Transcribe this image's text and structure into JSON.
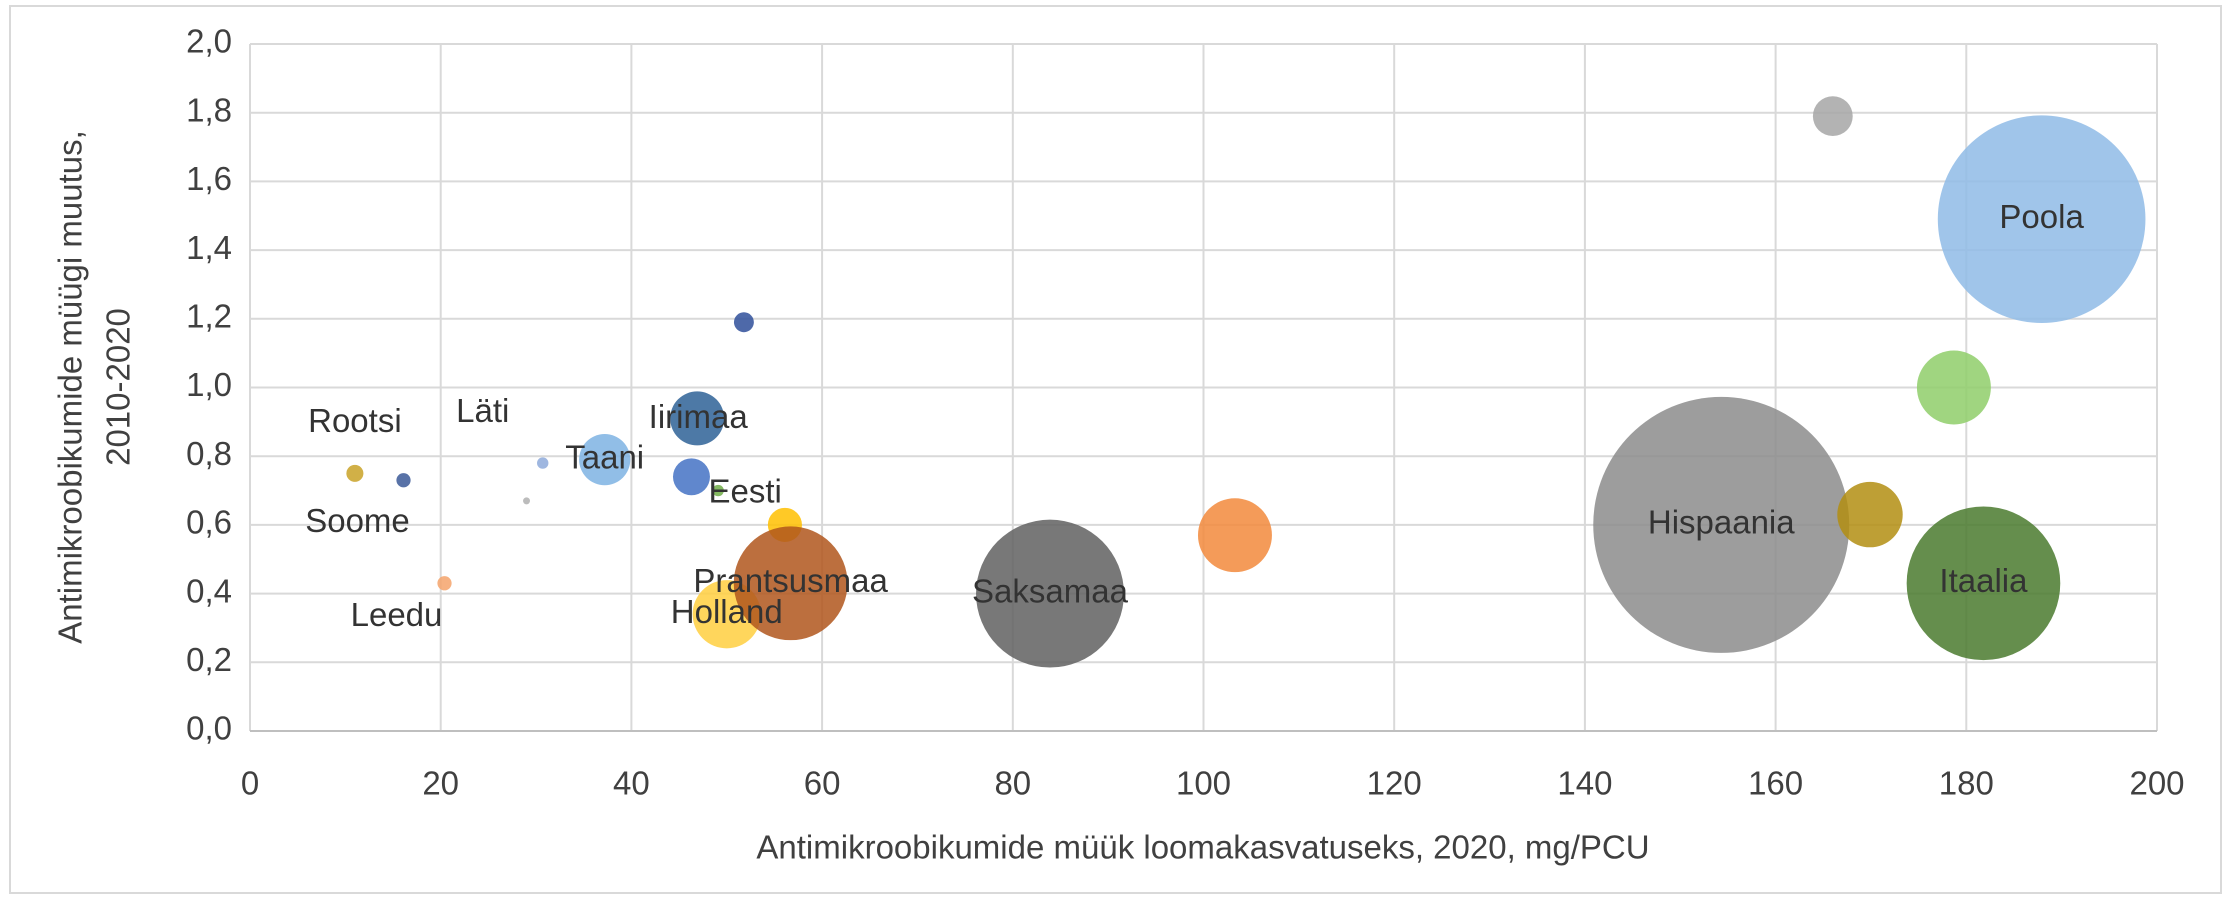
{
  "chart_data": {
    "type": "bubble",
    "x_label": "Antimikroobikumide müük loomakasvatuseks, 2020, mg/PCU",
    "y_label": [
      "Antimikroobikumide müügi muutus,",
      "2010-2020"
    ],
    "xlim": [
      0,
      200
    ],
    "xticks": [
      0,
      20,
      40,
      60,
      80,
      100,
      120,
      140,
      160,
      180,
      200
    ],
    "ylim": [
      0,
      2.0
    ],
    "yticks": [
      {
        "value": 0,
        "label": "0,0"
      },
      {
        "value": 0.2,
        "label": "0,2"
      },
      {
        "value": 0.4,
        "label": "0,4"
      },
      {
        "value": 0.6,
        "label": "0,6"
      },
      {
        "value": 0.8,
        "label": "0,8"
      },
      {
        "value": 1.0,
        "label": "1,0"
      },
      {
        "value": 1.2,
        "label": "1,2"
      },
      {
        "value": 1.4,
        "label": "1,4"
      },
      {
        "value": 1.6,
        "label": "1,6"
      },
      {
        "value": 1.8,
        "label": "1,8"
      },
      {
        "value": 2.0,
        "label": "2,0"
      }
    ],
    "grid": true,
    "labels": [
      "Rootsi",
      "Soome",
      "Leedu",
      "Läti",
      null,
      "Taani",
      "Iirimaa",
      null,
      "Eesti",
      null,
      null,
      "Holland",
      "Prantsusmaa",
      "Saksamaa",
      null,
      "Hispaania",
      null,
      "Poola",
      null,
      null,
      "Itaalia"
    ],
    "x": [
      11.0,
      16.1,
      20.4,
      30.7,
      29.0,
      37.2,
      46.9,
      46.3,
      49.1,
      51.8,
      56.1,
      50.0,
      56.7,
      83.9,
      103.3,
      154.3,
      166.0,
      187.9,
      178.7,
      169.9,
      181.8
    ],
    "values": [
      0.75,
      0.73,
      0.43,
      0.78,
      0.67,
      0.79,
      0.91,
      0.74,
      0.7,
      1.19,
      0.6,
      0.34,
      0.43,
      0.4,
      0.57,
      0.6,
      1.79,
      1.49,
      1.0,
      0.63,
      0.43
    ],
    "sizes": [
      36,
      25,
      25,
      16,
      6,
      324,
      361,
      169,
      16,
      49,
      144,
      576,
      1600,
      2704,
      676,
      8100,
      196,
      5329,
      676,
      529,
      2916
    ],
    "colors": [
      "#c9a227",
      "#3b5998",
      "#f4a36b",
      "#8eaadb",
      "#b0b0b0",
      "#7eb3e3",
      "#2e6196",
      "#4472c4",
      "#70ad47",
      "#2f4f9a",
      "#ffc000",
      "#ffcf40",
      "#b0561c",
      "#606060",
      "#f28a3c",
      "#8c8c8c",
      "#a6a6a6",
      "#8fbbe6",
      "#8fce6a",
      "#b38e12",
      "#4a7a2e"
    ]
  }
}
